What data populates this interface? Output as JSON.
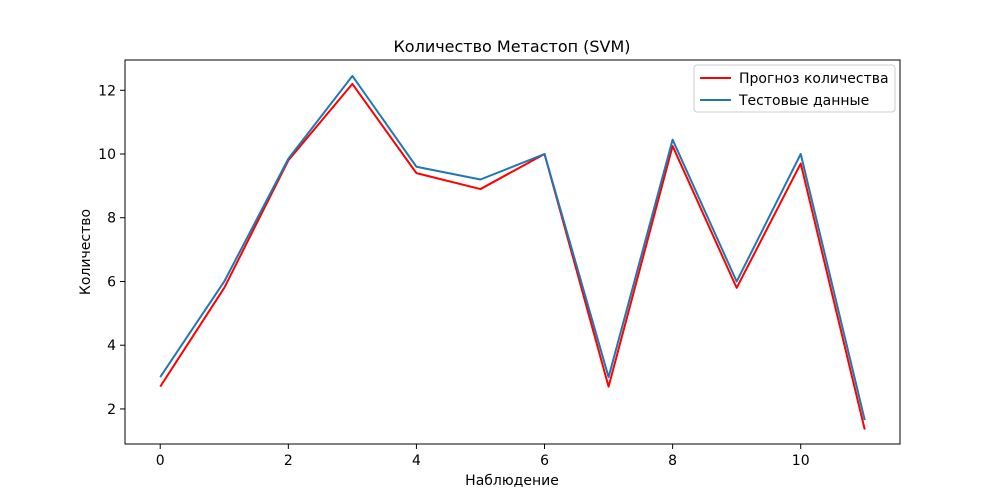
{
  "chart_data": {
    "type": "line",
    "title": "Количество Метастоп (SVM)",
    "xlabel": "Наблюдение",
    "ylabel": "Количество",
    "x": [
      0,
      1,
      2,
      3,
      4,
      5,
      6,
      7,
      8,
      9,
      10,
      11
    ],
    "xlim": [
      -0.55,
      11.55
    ],
    "ylim": [
      0.9,
      12.95
    ],
    "xticks": [
      0,
      2,
      4,
      6,
      8,
      10
    ],
    "yticks": [
      2,
      4,
      6,
      8,
      10,
      12
    ],
    "grid": false,
    "legend_position": "top-right",
    "series": [
      {
        "name": "Прогноз количества",
        "color": "#ff0000",
        "values": [
          2.7,
          5.8,
          9.8,
          12.2,
          9.4,
          8.9,
          10.0,
          2.7,
          10.25,
          5.8,
          9.7,
          1.35
        ]
      },
      {
        "name": "Тестовые данные",
        "color": "#1f77b4",
        "values": [
          3.0,
          6.0,
          9.85,
          12.45,
          9.6,
          9.2,
          10.0,
          3.0,
          10.45,
          6.0,
          10.0,
          1.65
        ]
      }
    ]
  }
}
